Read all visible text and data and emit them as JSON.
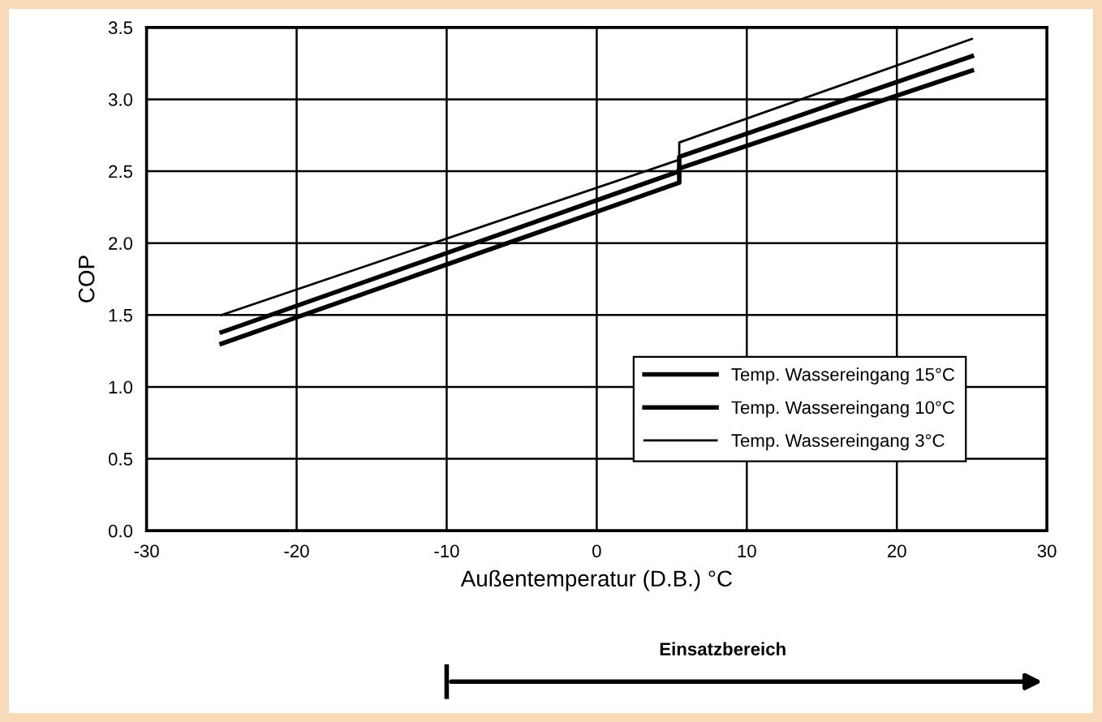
{
  "chart_data": {
    "type": "line",
    "xlabel": "Außentemperatur (D.B.) °C",
    "ylabel": "COP",
    "xlim": [
      -30,
      30
    ],
    "xticks": [
      -30,
      -20,
      -10,
      0,
      10,
      20,
      30
    ],
    "ylim": [
      0,
      3.5
    ],
    "yticks": [
      {
        "value": 0,
        "label": "0.0"
      },
      {
        "value": 0.5,
        "label": "0.5"
      },
      {
        "value": 1,
        "label": "1.0"
      },
      {
        "value": 1.5,
        "label": "1.5"
      },
      {
        "value": 2,
        "label": "2.0"
      },
      {
        "value": 2.5,
        "label": "2.5"
      },
      {
        "value": 3,
        "label": "3.0"
      },
      {
        "value": 3.5,
        "label": "3.5"
      }
    ],
    "grid": true,
    "legend": "bottom right",
    "marker": "none",
    "line_style": "solid",
    "series": [
      {
        "name": "Temp. Wassereingang 15°C",
        "color": "#000000",
        "x": [
          -25,
          5.5,
          5.5,
          25
        ],
        "values": [
          1.3,
          2.42,
          2.52,
          3.2
        ]
      },
      {
        "name": "Temp. Wassereingang 10°C",
        "color": "#000000",
        "x": [
          -25,
          5.5,
          5.5,
          25
        ],
        "values": [
          1.38,
          2.5,
          2.6,
          3.3
        ]
      },
      {
        "name": "Temp. Wassereingang 3°C",
        "color": "#000000",
        "x": [
          -25,
          5.5,
          5.5,
          25
        ],
        "values": [
          1.5,
          2.58,
          2.7,
          3.42
        ]
      }
    ],
    "annotations": [
      "Einsatzbereich"
    ]
  }
}
